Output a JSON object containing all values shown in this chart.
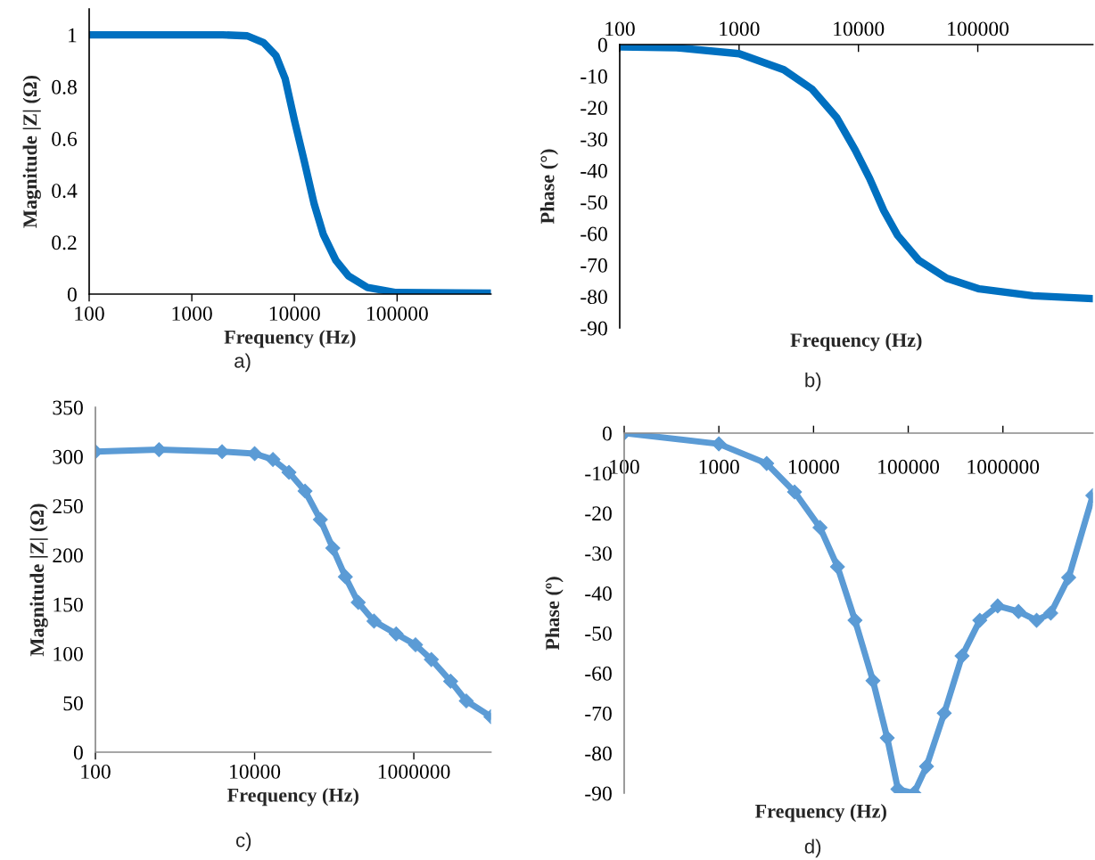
{
  "chart_data": [
    {
      "type": "line",
      "xlabel": "Frequency (Hz)",
      "ylabel": "Magnitude |Z| (Ω)",
      "annotations": [
        "a)"
      ],
      "log": "x",
      "xlim": [
        100,
        820000
      ],
      "xticks": [
        100,
        1000,
        10000,
        100000
      ],
      "ylim": [
        0,
        1.1
      ],
      "yticks": [
        0,
        0.2,
        0.4,
        0.6,
        0.8,
        1
      ],
      "marker": "none",
      "series": [
        {
          "color": "#0070c0",
          "x": [
            100,
            2000,
            3470,
            5000,
            6600,
            8130,
            10000,
            12500,
            15500,
            19100,
            25300,
            33600,
            51600,
            98000,
            820000
          ],
          "values": [
            1.0,
            1.0,
            0.996,
            0.97,
            0.92,
            0.83,
            0.67,
            0.51,
            0.35,
            0.23,
            0.13,
            0.07,
            0.025,
            0.006,
            0.004
          ]
        }
      ]
    },
    {
      "type": "line",
      "xlabel": "Frequency (Hz)",
      "ylabel": "Phase (°)",
      "annotations": [
        "b)"
      ],
      "log": "x",
      "xlim": [
        100,
        920000
      ],
      "xticks": [
        100,
        1000,
        10000,
        100000
      ],
      "ylim": [
        -90,
        0
      ],
      "yticks": [
        0,
        -10,
        -20,
        -30,
        -40,
        -50,
        -60,
        -70,
        -80,
        -90
      ],
      "marker": "none",
      "series": [
        {
          "color": "#0070c0",
          "x": [
            100,
            300,
            1000,
            2370,
            4100,
            6600,
            9400,
            12400,
            16300,
            21300,
            32000,
            55000,
            103000,
            290000,
            920000
          ],
          "values": [
            -0.7,
            -1.0,
            -2.9,
            -8.0,
            -14.2,
            -23.3,
            -33.5,
            -42.5,
            -52.7,
            -60.6,
            -68.5,
            -74.2,
            -77.6,
            -79.8,
            -80.7
          ]
        }
      ]
    },
    {
      "type": "line",
      "xlabel": "Frequency (Hz)",
      "ylabel": "Magnitude |Z| (Ω)",
      "annotations": [
        "c)"
      ],
      "log": "x",
      "xlim": [
        100,
        9300000
      ],
      "xticks": [
        100,
        10000,
        1000000
      ],
      "ylim": [
        0,
        350
      ],
      "yticks": [
        0,
        50,
        100,
        150,
        200,
        250,
        300,
        350
      ],
      "marker": "diamond",
      "series": [
        {
          "color": "#5b9bd5",
          "x": [
            100,
            630,
            3900,
            10000,
            17000,
            27000,
            43000,
            67000,
            96000,
            138000,
            200000,
            316000,
            600000,
            1050000,
            1660000,
            2900000,
            4560000,
            9300000
          ],
          "values": [
            305,
            307,
            305,
            303,
            297,
            284,
            265,
            236,
            207,
            178,
            152,
            133,
            120,
            109,
            94,
            72,
            52,
            36
          ]
        }
      ]
    },
    {
      "type": "line",
      "xlabel": "Frequency (Hz)",
      "ylabel": "Phase (º)",
      "annotations": [
        "d)"
      ],
      "log": "x",
      "xlim": [
        100,
        8900000
      ],
      "xticks": [
        100,
        1000,
        10000,
        100000,
        1000000
      ],
      "ylim": [
        -90,
        0
      ],
      "yticks": [
        0,
        -10,
        -20,
        -30,
        -40,
        -50,
        -60,
        -70,
        -80,
        -90
      ],
      "marker": "diamond",
      "series": [
        {
          "color": "#5b9bd5",
          "x": [
            100,
            1000,
            3200,
            6300,
            11700,
            17900,
            27400,
            42400,
            60000,
            77800,
            115000,
            156000,
            240000,
            370000,
            570000,
            880000,
            1460000,
            2270000,
            3200000,
            4950000,
            8900000
          ],
          "values": [
            0,
            -2.7,
            -7.6,
            -14.7,
            -23.6,
            -33.4,
            -46.8,
            -61.9,
            -76.2,
            -89,
            -90,
            -83.3,
            -70,
            -55.7,
            -46.8,
            -43.2,
            -44.6,
            -46.8,
            -45,
            -36.1,
            -15.6
          ]
        }
      ]
    }
  ]
}
